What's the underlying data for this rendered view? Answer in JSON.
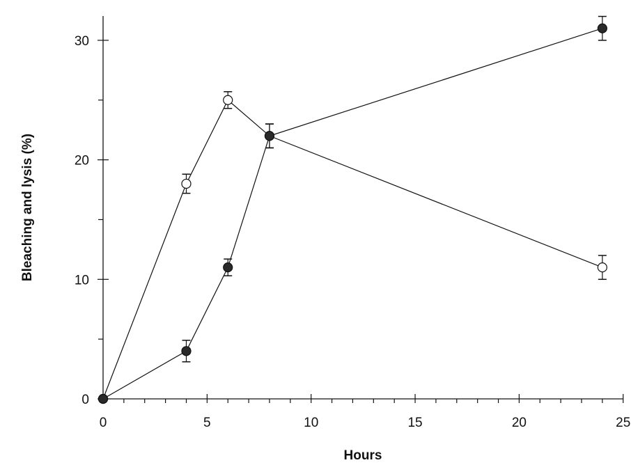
{
  "chart_data": {
    "type": "line",
    "title": "",
    "xlabel": "Hours",
    "ylabel": "Bleaching and lysis (%)",
    "xlim": [
      0,
      25
    ],
    "ylim": [
      0,
      32
    ],
    "x_major_ticks": [
      0,
      5,
      10,
      15,
      20,
      25
    ],
    "x_minor_step": 1,
    "y_major_ticks": [
      0,
      10,
      20,
      30
    ],
    "y_minor_ticks": [
      5,
      15,
      25
    ],
    "grid": false,
    "legend": null,
    "series": [
      {
        "name": "open circles",
        "marker": "open-circle",
        "x": [
          0,
          4,
          6,
          8,
          24
        ],
        "values": [
          0,
          18,
          25,
          22,
          11
        ],
        "errors": [
          0,
          0.8,
          0.7,
          1.0,
          1.0
        ]
      },
      {
        "name": "filled circles",
        "marker": "filled-circle",
        "x": [
          0,
          4,
          6,
          8,
          24
        ],
        "values": [
          0,
          4,
          11,
          22,
          31
        ],
        "errors": [
          0,
          0.9,
          0.7,
          1.0,
          1.0
        ]
      }
    ],
    "colors": {
      "line": "#111111",
      "filled_marker": "#2a2a2a",
      "open_marker_fill": "#ffffff"
    }
  }
}
